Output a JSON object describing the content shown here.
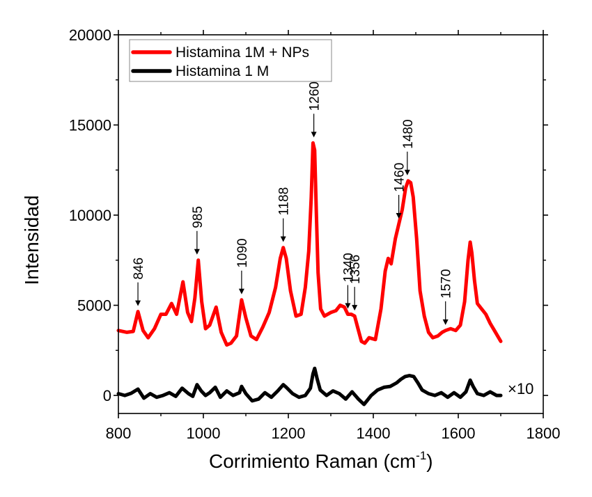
{
  "chart_data": {
    "type": "line",
    "xlabel_main": "Corrimiento Raman (cm",
    "xlabel_sup": "-1",
    "xlabel_end": ")",
    "ylabel": "Intensidad",
    "xlim": [
      800,
      1800
    ],
    "ylim": [
      -1000,
      20000
    ],
    "xticks": [
      800,
      1000,
      1200,
      1400,
      1600,
      1800
    ],
    "yticks": [
      0,
      5000,
      10000,
      15000,
      20000
    ],
    "grid": false,
    "legend_position": "top-left",
    "scale_note": "×10",
    "series": [
      {
        "name": "Histamina 1M + NPs",
        "color": "#ff0000",
        "x": [
          800,
          820,
          835,
          846,
          858,
          870,
          885,
          900,
          912,
          925,
          937,
          952,
          963,
          972,
          980,
          988,
          996,
          1005,
          1015,
          1030,
          1042,
          1055,
          1065,
          1078,
          1090,
          1100,
          1112,
          1125,
          1140,
          1155,
          1170,
          1181,
          1188,
          1195,
          1205,
          1218,
          1230,
          1240,
          1248,
          1254,
          1258,
          1262,
          1266,
          1270,
          1276,
          1285,
          1300,
          1312,
          1322,
          1332,
          1340,
          1348,
          1356,
          1364,
          1372,
          1380,
          1390,
          1405,
          1418,
          1428,
          1435,
          1442,
          1452,
          1460,
          1468,
          1476,
          1482,
          1488,
          1494,
          1502,
          1510,
          1520,
          1530,
          1540,
          1552,
          1562,
          1570,
          1582,
          1594,
          1605,
          1615,
          1623,
          1628,
          1632,
          1638,
          1645,
          1655,
          1665,
          1675,
          1685,
          1700
        ],
        "y": [
          3600,
          3500,
          3550,
          4650,
          3600,
          3200,
          3700,
          4500,
          4500,
          5100,
          4500,
          6300,
          4600,
          4100,
          5400,
          7500,
          5200,
          3700,
          3900,
          4900,
          3500,
          2800,
          2900,
          3300,
          5300,
          4300,
          3300,
          3100,
          3800,
          4600,
          6000,
          7600,
          8200,
          7600,
          5800,
          4400,
          4500,
          6000,
          8000,
          11000,
          14000,
          13600,
          10000,
          6800,
          4800,
          4400,
          4600,
          4700,
          5000,
          4900,
          4500,
          4500,
          4400,
          3700,
          3000,
          2900,
          3200,
          3100,
          4800,
          6900,
          7600,
          7300,
          8700,
          9500,
          10300,
          11500,
          11900,
          11800,
          11000,
          8700,
          5800,
          4400,
          3500,
          3200,
          3300,
          3500,
          3600,
          3700,
          3600,
          3900,
          5200,
          7500,
          8500,
          7900,
          6400,
          5100,
          4800,
          4500,
          4000,
          3600,
          3000
        ]
      },
      {
        "name": "Histamina 1 M",
        "color": "#000000",
        "x": [
          800,
          815,
          830,
          846,
          860,
          875,
          890,
          905,
          920,
          935,
          950,
          965,
          975,
          985,
          995,
          1005,
          1015,
          1028,
          1040,
          1055,
          1070,
          1085,
          1090,
          1100,
          1115,
          1130,
          1145,
          1160,
          1175,
          1188,
          1195,
          1210,
          1225,
          1240,
          1252,
          1258,
          1262,
          1268,
          1275,
          1290,
          1305,
          1320,
          1335,
          1350,
          1365,
          1378,
          1385,
          1395,
          1410,
          1425,
          1440,
          1455,
          1465,
          1475,
          1485,
          1495,
          1505,
          1515,
          1530,
          1545,
          1560,
          1575,
          1590,
          1605,
          1618,
          1628,
          1635,
          1645,
          1660,
          1675,
          1690,
          1700
        ],
        "y": [
          100,
          0,
          120,
          350,
          -150,
          100,
          -100,
          0,
          150,
          -50,
          400,
          100,
          -50,
          600,
          250,
          0,
          150,
          450,
          -100,
          250,
          0,
          150,
          500,
          100,
          -300,
          -200,
          150,
          -100,
          250,
          600,
          450,
          100,
          -100,
          0,
          400,
          1200,
          1500,
          900,
          300,
          0,
          250,
          100,
          -200,
          200,
          -200,
          -500,
          -300,
          0,
          300,
          450,
          500,
          700,
          900,
          1050,
          1100,
          1050,
          700,
          300,
          100,
          0,
          150,
          -100,
          150,
          -100,
          200,
          850,
          500,
          100,
          0,
          200,
          0,
          0
        ]
      }
    ],
    "annotations": [
      {
        "label": "846",
        "x": 846,
        "y": 4650
      },
      {
        "label": "985",
        "x": 985,
        "y": 7500
      },
      {
        "label": "1090",
        "x": 1090,
        "y": 5300
      },
      {
        "label": "1188",
        "x": 1188,
        "y": 8200
      },
      {
        "label": "1260",
        "x": 1260,
        "y": 14000
      },
      {
        "label": "1340",
        "x": 1340,
        "y": 4500
      },
      {
        "label": "1356",
        "x": 1356,
        "y": 4400
      },
      {
        "label": "1460",
        "x": 1460,
        "y": 9500
      },
      {
        "label": "1480",
        "x": 1480,
        "y": 11900
      },
      {
        "label": "1570",
        "x": 1570,
        "y": 3600
      }
    ]
  }
}
